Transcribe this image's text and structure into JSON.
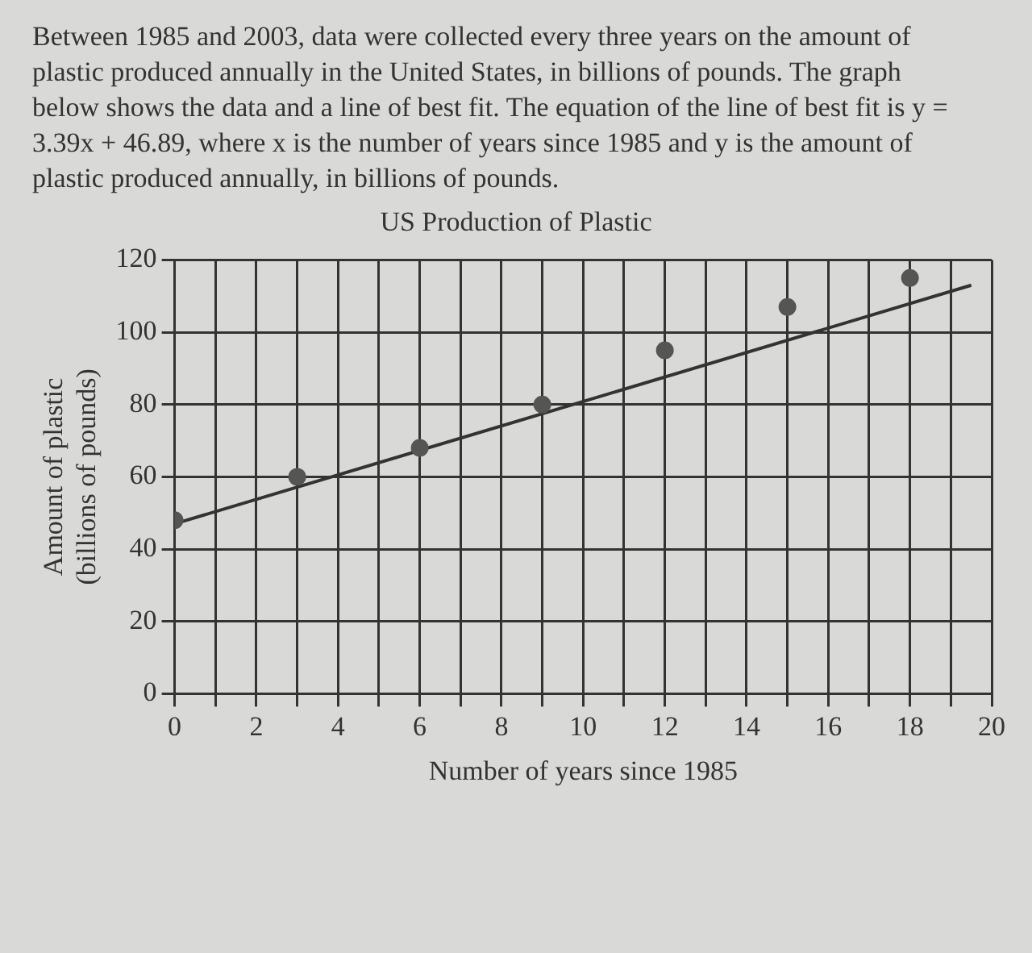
{
  "chart_data": {
    "type": "scatter",
    "title": "US Production of Plastic",
    "xlabel": "Number of years since 1985",
    "ylabel": "Amount of plastic\n(billions of pounds)",
    "annotations": [
      "Between 1985 and 2003, data were collected every three years on the amount of plastic produced annually in the United States, in billions of pounds. The graph below shows the data and a line of best fit. The equation of the line of best fit is y = 3.39x + 46.89, where x is the number of years since 1985 and y is the amount of plastic produced annually, in billions of pounds."
    ],
    "series": [
      {
        "color": "#555555",
        "marker": "circle",
        "x": [
          0,
          3,
          6,
          9,
          12,
          15,
          18
        ],
        "values": [
          48,
          60,
          68,
          80,
          95,
          107,
          115
        ]
      },
      {
        "type": "line",
        "color": "#333333",
        "marker": "none",
        "x": [
          0,
          19.5
        ],
        "values": [
          47,
          113
        ]
      }
    ],
    "xlim": [
      0,
      20
    ],
    "xticks": [
      0,
      {
        "value": 1,
        "label": null
      },
      2,
      {
        "value": 3,
        "label": null
      },
      4,
      {
        "value": 5,
        "label": null
      },
      6,
      {
        "value": 7,
        "label": null
      },
      8,
      {
        "value": 9,
        "label": null
      },
      10,
      {
        "value": 11,
        "label": null
      },
      12,
      {
        "value": 13,
        "label": null
      },
      14,
      {
        "value": 15,
        "label": null
      },
      16,
      {
        "value": 17,
        "label": null
      },
      18,
      {
        "value": 19,
        "label": null
      },
      20
    ],
    "ylim": [
      0,
      120
    ],
    "yticks": [
      0,
      20,
      40,
      60,
      80,
      100,
      120
    ],
    "grid": true,
    "legend": false
  }
}
